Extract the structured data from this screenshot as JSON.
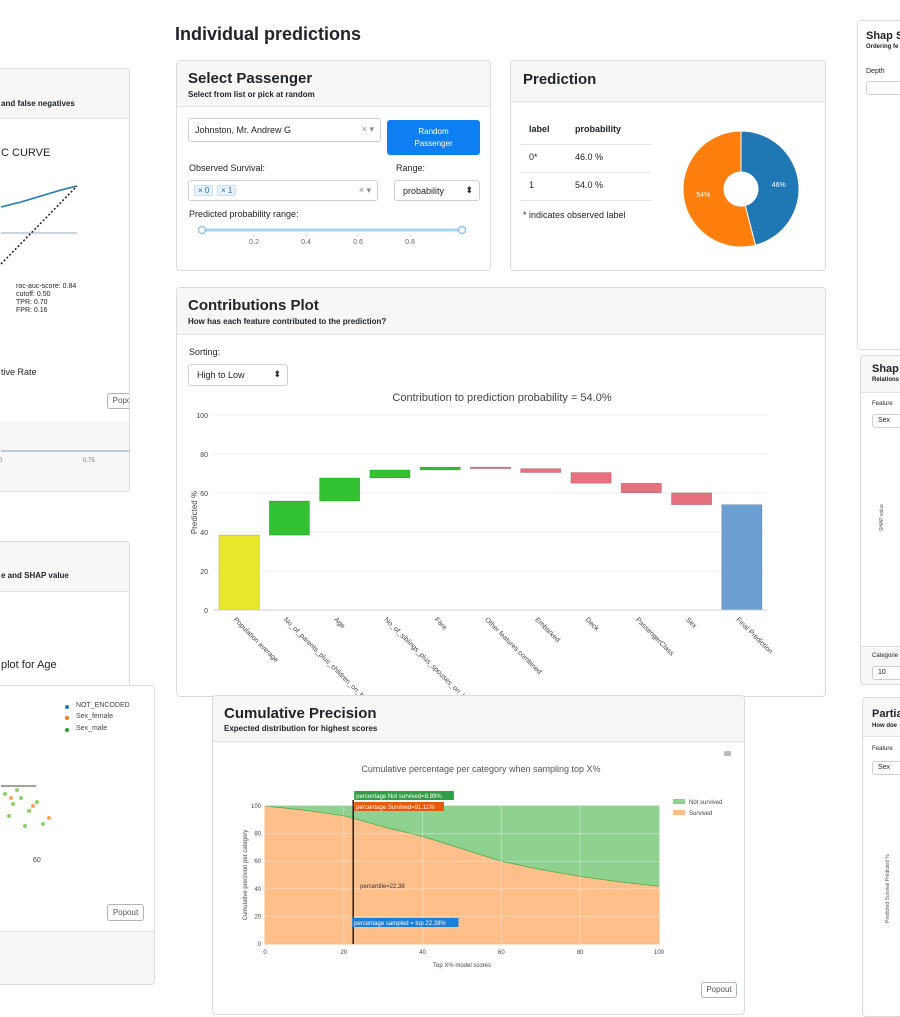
{
  "page_title": "Individual predictions",
  "select_passenger": {
    "title": "Select Passenger",
    "subtitle": "Select from list or pick at random",
    "passenger": "Johnston, Mr. Andrew G",
    "button": "Random Passenger",
    "observed_label": "Observed Survival:",
    "observed_tags": [
      "0",
      "1"
    ],
    "range_label": "Range:",
    "range_value": "probability",
    "slider_label": "Predicted probability range:",
    "slider_ticks": [
      0.2,
      0.4,
      0.6,
      0.8
    ]
  },
  "prediction": {
    "title": "Prediction",
    "table": {
      "header": [
        "label",
        "probability"
      ],
      "rows": [
        [
          "0*",
          "46.0 %"
        ],
        [
          "1",
          "54.0 %"
        ]
      ]
    },
    "note": "* indicates observed label",
    "chart_data": {
      "type": "pie",
      "values": [
        46,
        54
      ],
      "value_labels": [
        "46%",
        "54%"
      ],
      "colors": [
        "#1f77b4",
        "#ff7f0e"
      ]
    }
  },
  "contributions": {
    "title": "Contributions Plot",
    "subtitle": "How has each feature contributed to the prediction?",
    "sorting_label": "Sorting:",
    "sorting_value": "High to Low",
    "chart_data": {
      "type": "waterfall",
      "title": "Contribution to prediction probability = 54.0%",
      "y_label": "Predicted %",
      "categories": [
        "Population average",
        "No_of_parents_plus_children_on_board",
        "Age",
        "No_of_siblings_plus_spouses_on_board",
        "Fare",
        "Other features combined",
        "Embarked",
        "Deck",
        "PassengerClass",
        "Sex",
        "Final Prediction"
      ],
      "values": [
        38.4,
        17.5,
        11.8,
        4.1,
        1.5,
        -0.8,
        -2.0,
        -5.5,
        -4.9,
        -6.1,
        54.0
      ],
      "ylim": [
        0,
        100
      ],
      "yticks": [
        0,
        20,
        40,
        60,
        80,
        100
      ],
      "grid": true,
      "colors": {
        "base": "#e8e82a",
        "increase": "#33c233",
        "decrease": "#e8707e",
        "total": "#6c9fd2"
      }
    }
  },
  "cumulative_precision": {
    "title": "Cumulative Precision",
    "subtitle": "Expected distribution for highest scores",
    "button": "Popout",
    "chart_data": {
      "type": "stacked_area",
      "title": "Cumulative percentage per category when sampling top X%",
      "x_label": "Top X% model scores",
      "y_label": "Cumulative precision per category",
      "x": [
        0,
        10,
        20,
        30,
        40,
        50,
        60,
        70,
        80,
        90,
        100
      ],
      "series": [
        {
          "name": "Survived",
          "color": "#ffbf8a",
          "values": [
            100,
            97,
            93,
            85,
            78,
            69,
            60,
            54,
            49,
            45,
            42
          ]
        },
        {
          "name": "Not survived",
          "color": "#8fd18f",
          "values": [
            0,
            3,
            7,
            15,
            22,
            31,
            40,
            46,
            51,
            55,
            58
          ]
        }
      ],
      "xlim": [
        0,
        100
      ],
      "ylim": [
        0,
        100
      ],
      "xticks": [
        0,
        20,
        40,
        60,
        80,
        100
      ],
      "yticks": [
        0,
        20,
        40,
        60,
        80,
        100
      ],
      "marker_x": 22.38,
      "annotations": [
        "percentage Not survived=8.89%",
        "percentage Survived=91.11%",
        "percentile=22.38",
        "percentage sampled = top 22.38%"
      ]
    }
  },
  "left_panels": {
    "roc": {
      "title": "and false negatives",
      "chart_title": "C CURVE",
      "stats": [
        "roc-auc-score: 0.84",
        "cutoff: 0.50",
        "TPR: 0.70",
        "FPR: 0.16"
      ],
      "axis_label": "tive Rate",
      "button": "Popo",
      "slider_labels": [
        "0",
        "0.75"
      ]
    },
    "shap": {
      "title": "e and SHAP value",
      "chart_title": "plot for Age",
      "legend": [
        "NOT_ENCODED",
        "Sex_female",
        "Sex_male"
      ],
      "tick": "60",
      "button": "Popout"
    }
  },
  "right_panels": {
    "summary": {
      "title": "Shap S",
      "subtitle": "Ordering fe",
      "depth_label": "Depth"
    },
    "dependence": {
      "title": "Shap",
      "subtitle": "Relations",
      "feature_label": "Feature",
      "feature_value": "Sex",
      "y_label": "SHAP value",
      "category_label": "Categorie",
      "category_value": "10"
    },
    "pdp": {
      "title": "Partia",
      "subtitle": "How doe",
      "feature_label": "Feature",
      "feature_value": "Sex",
      "y_label": "Predicted Survival Predicted %"
    }
  }
}
